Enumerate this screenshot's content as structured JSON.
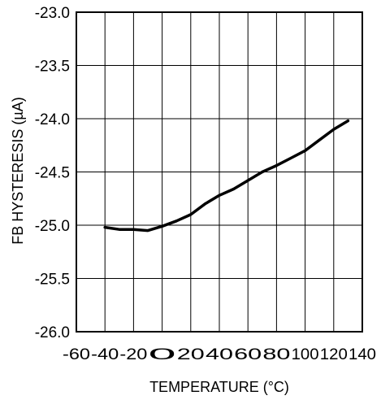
{
  "chart_data": {
    "type": "line",
    "title": "",
    "xlabel": "TEMPERATURE (°C)",
    "ylabel": "FB HYSTERESIS (µA)",
    "xlim": [
      -60,
      140
    ],
    "ylim": [
      -26.0,
      -23.0
    ],
    "x_ticks": [
      -60,
      -40,
      -20,
      0,
      20,
      40,
      60,
      80,
      100,
      120,
      140
    ],
    "x_tick_labels": [
      "-60",
      "-40",
      "-20",
      "0",
      "20",
      "40",
      "60",
      "80",
      "100",
      "120",
      "140"
    ],
    "y_ticks": [
      -23.0,
      -23.5,
      -24.0,
      -24.5,
      -25.0,
      -25.5,
      -26.0
    ],
    "y_tick_labels": [
      "-23.0",
      "-23.5",
      "-24.0",
      "-24.5",
      "-25.0",
      "-25.5",
      "-26.0"
    ],
    "grid": true,
    "series": [
      {
        "x": [
          -40,
          -30,
          -20,
          -10,
          0,
          10,
          20,
          30,
          40,
          50,
          60,
          70,
          80,
          90,
          100,
          110,
          120,
          130
        ],
        "y": [
          -25.02,
          -25.04,
          -25.04,
          -25.05,
          -25.01,
          -24.96,
          -24.9,
          -24.8,
          -24.72,
          -24.66,
          -24.58,
          -24.5,
          -24.44,
          -24.37,
          -24.3,
          -24.2,
          -24.1,
          -24.02
        ]
      }
    ]
  }
}
